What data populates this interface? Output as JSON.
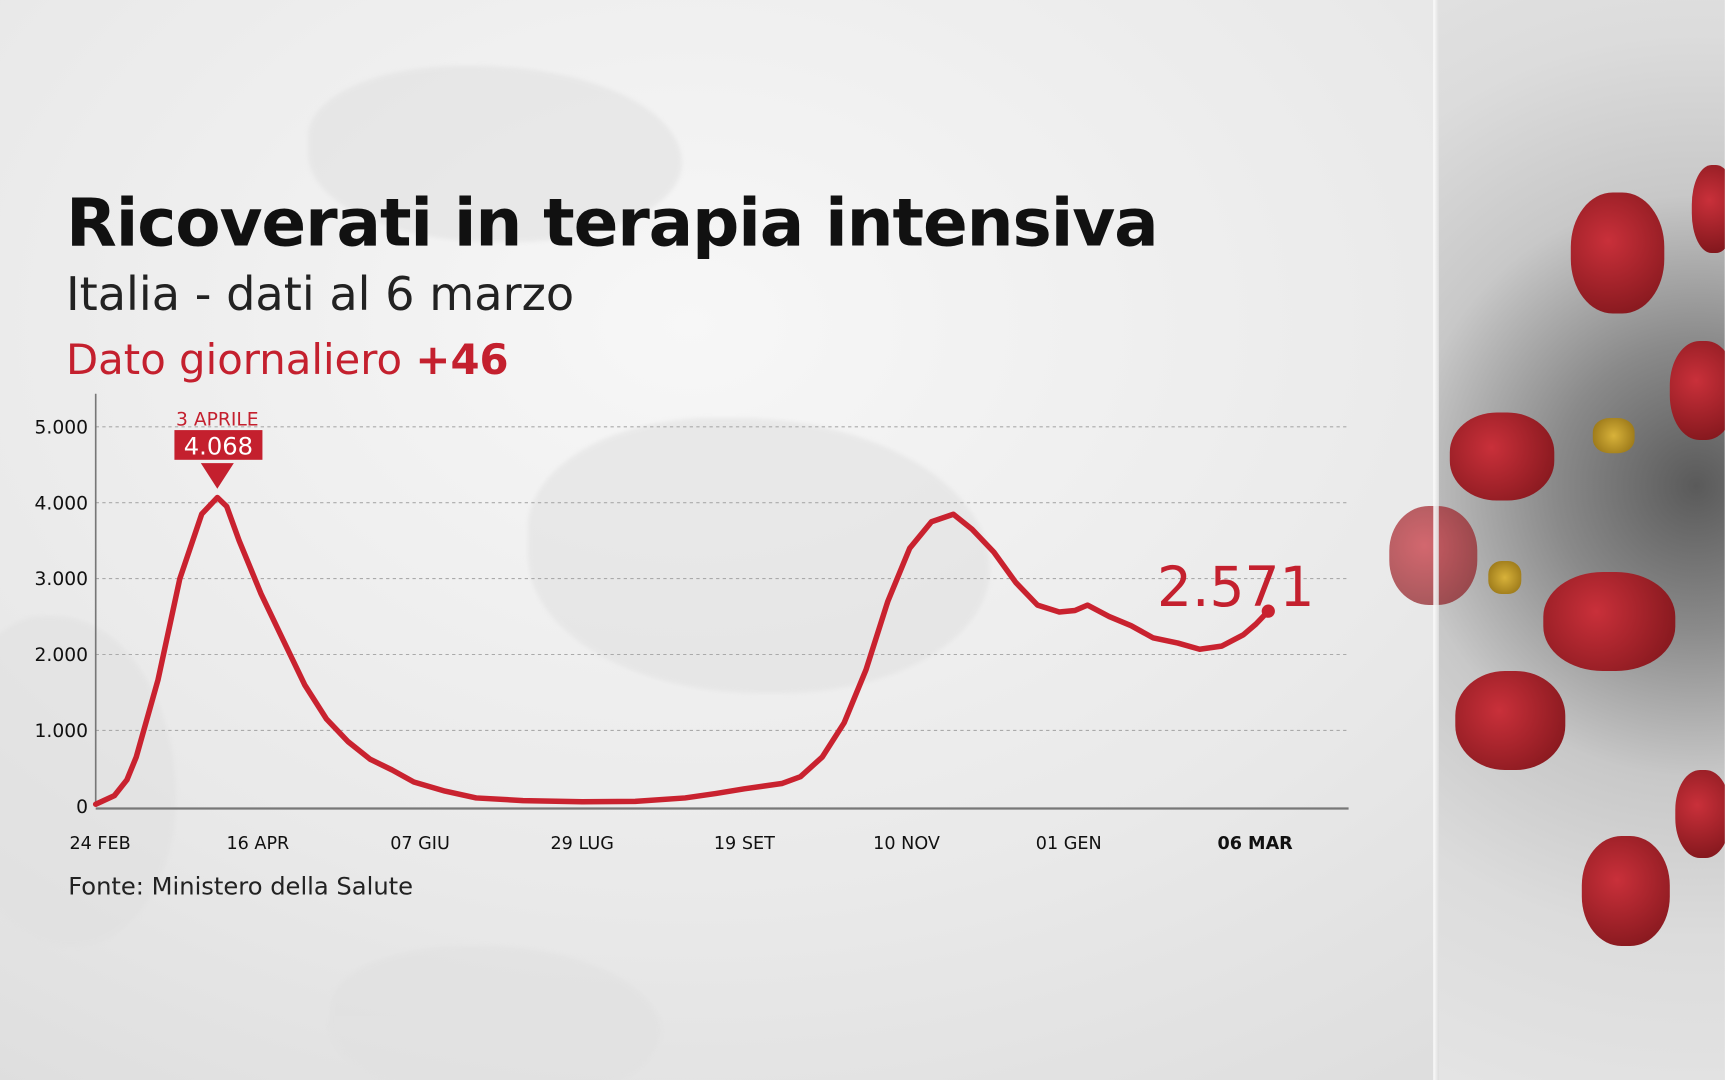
{
  "title": "Ricoverati in terapia intensiva",
  "subtitle": "Italia - dati al 6 marzo",
  "daily_label": "Dato giornaliero",
  "daily_value": "+46",
  "source": "Fonte: Ministero della Salute",
  "colors": {
    "line": "#c9222f",
    "accent": "#c4202e",
    "text": "#111111"
  },
  "chart_data": {
    "type": "line",
    "title": "Ricoverati in terapia intensiva",
    "xlim": [
      "2020-02-24",
      "2021-03-06"
    ],
    "ylim": [
      0,
      5000
    ],
    "grid": true,
    "yticks": [
      0,
      1000,
      2000,
      3000,
      4000,
      5000
    ],
    "ytick_labels": [
      "0",
      "1.000",
      "2.000",
      "3.000",
      "4.000",
      "5.000"
    ],
    "xticks": [
      {
        "date": "2020-02-24",
        "label": "24 FEB"
      },
      {
        "date": "2020-04-16",
        "label": "16 APR"
      },
      {
        "date": "2020-06-07",
        "label": "07 GIU"
      },
      {
        "date": "2020-07-29",
        "label": "29 LUG"
      },
      {
        "date": "2020-09-19",
        "label": "19 SET"
      },
      {
        "date": "2020-11-10",
        "label": "10 NOV"
      },
      {
        "date": "2021-01-01",
        "label": "01 GEN"
      },
      {
        "date": "2021-03-06",
        "label": "06 MAR",
        "bold": true
      }
    ],
    "peak_annotation": {
      "date": "2020-04-03",
      "label": "3 APRILE",
      "value_label": "4.068",
      "value": 4068
    },
    "end_annotation": {
      "date": "2021-03-06",
      "value_label": "2.571",
      "value": 2571
    },
    "points": [
      [
        "2020-02-24",
        27
      ],
      [
        "2020-03-01",
        140
      ],
      [
        "2020-03-05",
        350
      ],
      [
        "2020-03-08",
        650
      ],
      [
        "2020-03-15",
        1670
      ],
      [
        "2020-03-22",
        3000
      ],
      [
        "2020-03-29",
        3850
      ],
      [
        "2020-04-03",
        4068
      ],
      [
        "2020-04-06",
        3950
      ],
      [
        "2020-04-10",
        3500
      ],
      [
        "2020-04-17",
        2800
      ],
      [
        "2020-04-24",
        2200
      ],
      [
        "2020-05-01",
        1600
      ],
      [
        "2020-05-08",
        1150
      ],
      [
        "2020-05-15",
        850
      ],
      [
        "2020-05-22",
        620
      ],
      [
        "2020-05-29",
        480
      ],
      [
        "2020-06-05",
        320
      ],
      [
        "2020-06-15",
        200
      ],
      [
        "2020-06-25",
        110
      ],
      [
        "2020-07-10",
        75
      ],
      [
        "2020-07-29",
        60
      ],
      [
        "2020-08-15",
        65
      ],
      [
        "2020-08-31",
        110
      ],
      [
        "2020-09-10",
        170
      ],
      [
        "2020-09-19",
        230
      ],
      [
        "2020-10-01",
        300
      ],
      [
        "2020-10-07",
        390
      ],
      [
        "2020-10-14",
        650
      ],
      [
        "2020-10-21",
        1100
      ],
      [
        "2020-10-28",
        1800
      ],
      [
        "2020-11-04",
        2700
      ],
      [
        "2020-11-11",
        3400
      ],
      [
        "2020-11-18",
        3750
      ],
      [
        "2020-11-25",
        3848
      ],
      [
        "2020-12-01",
        3650
      ],
      [
        "2020-12-08",
        3350
      ],
      [
        "2020-12-15",
        2950
      ],
      [
        "2020-12-22",
        2650
      ],
      [
        "2020-12-29",
        2560
      ],
      [
        "2021-01-03",
        2580
      ],
      [
        "2021-01-07",
        2650
      ],
      [
        "2021-01-14",
        2500
      ],
      [
        "2021-01-21",
        2380
      ],
      [
        "2021-01-28",
        2220
      ],
      [
        "2021-02-05",
        2150
      ],
      [
        "2021-02-12",
        2070
      ],
      [
        "2021-02-19",
        2110
      ],
      [
        "2021-02-26",
        2260
      ],
      [
        "2021-03-02",
        2400
      ],
      [
        "2021-03-06",
        2571
      ]
    ]
  }
}
